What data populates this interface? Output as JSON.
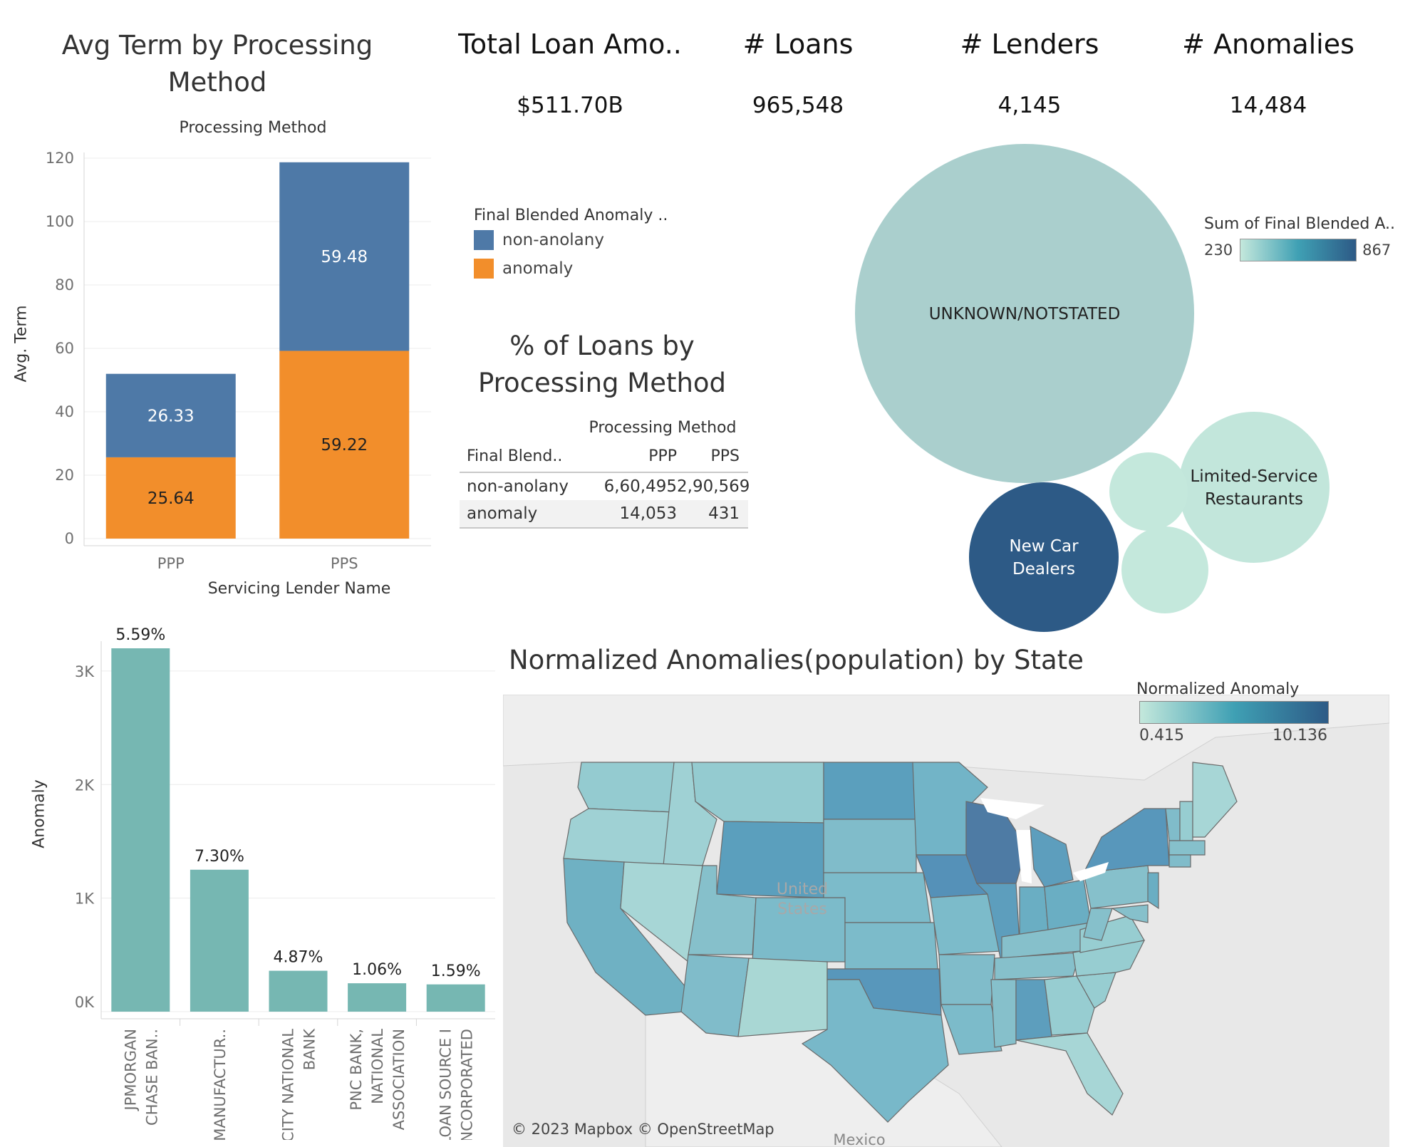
{
  "kpis": [
    {
      "title": "Total Loan Amo..",
      "value": "$511.70B"
    },
    {
      "title": "# Loans",
      "value": "965,548"
    },
    {
      "title": "# Lenders",
      "value": "4,145"
    },
    {
      "title": "# Anomalies",
      "value": "14,484"
    }
  ],
  "term_chart": {
    "title": "Avg Term by Processing Method",
    "header": "Processing Method",
    "ylabel": "Avg. Term"
  },
  "legend": {
    "title": "Final Blended Anomaly ..",
    "items": [
      {
        "label": "non-anolany",
        "color": "#4e79a7"
      },
      {
        "label": "anomaly",
        "color": "#f28e2b"
      }
    ]
  },
  "loans_table": {
    "title": "% of Loans by Processing Method",
    "col_header": "Processing Method",
    "row_header": "Final Blend..",
    "columns": [
      "PPP",
      "PPS"
    ],
    "rows": [
      {
        "label": "non-anolany",
        "values": [
          "6,60,495",
          "2,90,569"
        ]
      },
      {
        "label": "anomaly",
        "values": [
          "14,053",
          "431"
        ]
      }
    ]
  },
  "bubble": {
    "legend_title": "Sum of Final Blended A..",
    "min_label": "230",
    "max_label": "867",
    "colors": {
      "low": "#c4e8dc",
      "high": "#2d5a86"
    }
  },
  "lender_chart": {
    "title": "Servicing Lender Name",
    "ylabel": "Anomaly"
  },
  "map": {
    "title": "Normalized Anomalies(population) by State",
    "legend_title": "Normalized Anomaly",
    "min_label": "0.415",
    "max_label": "10.136",
    "place_label_1": "United",
    "place_label_2": "States",
    "bottom_label": "Mexico",
    "attribution": "© 2023 Mapbox © OpenStreetMap"
  },
  "chart_data": [
    {
      "type": "bar",
      "stacked": true,
      "title": "Avg Term by Processing Method",
      "xlabel": "",
      "ylabel": "Avg. Term",
      "categories": [
        "PPP",
        "PPS"
      ],
      "ylim": [
        0,
        120
      ],
      "yticks": [
        0,
        20,
        40,
        60,
        80,
        100,
        120
      ],
      "series": [
        {
          "name": "anomaly",
          "color": "#f28e2b",
          "values": [
            25.64,
            59.22
          ],
          "labels": [
            "25.64",
            "59.22"
          ]
        },
        {
          "name": "non-anolany",
          "color": "#4e79a7",
          "values": [
            26.33,
            59.48
          ],
          "labels": [
            "26.33",
            "59.48"
          ]
        }
      ]
    },
    {
      "type": "bubble",
      "bubbles": [
        {
          "label": "UNKNOWN/NOTSTATED",
          "value": 340
        },
        {
          "label": "New Car Dealers",
          "value": 867
        },
        {
          "label": "Limited-Service Restaurants",
          "value": 240
        },
        {
          "label": "",
          "value": 230
        },
        {
          "label": "",
          "value": 232
        }
      ]
    },
    {
      "type": "bar",
      "title": "Servicing Lender Name",
      "ylabel": "Anomaly",
      "categories": [
        [
          "JPMORGAN",
          "CHASE BAN.."
        ],
        [
          "MANUFACTUR.."
        ],
        [
          "CITY NATIONAL",
          "BANK"
        ],
        [
          "PNC BANK,",
          "NATIONAL",
          "ASSOCIATION"
        ],
        [
          "LOAN SOURCE I",
          "NCORPORATED"
        ]
      ],
      "values": [
        3200,
        1250,
        360,
        250,
        240
      ],
      "labels": [
        "5.59%",
        "7.30%",
        "4.87%",
        "1.06%",
        "1.59%"
      ],
      "ylim": [
        0,
        3200
      ],
      "yticks": [
        {
          "v": 0,
          "t": "0K"
        },
        {
          "v": 1000,
          "t": "1K"
        },
        {
          "v": 2000,
          "t": "2K"
        },
        {
          "v": 3000,
          "t": "3K"
        }
      ],
      "color": "#76b7b2"
    }
  ]
}
